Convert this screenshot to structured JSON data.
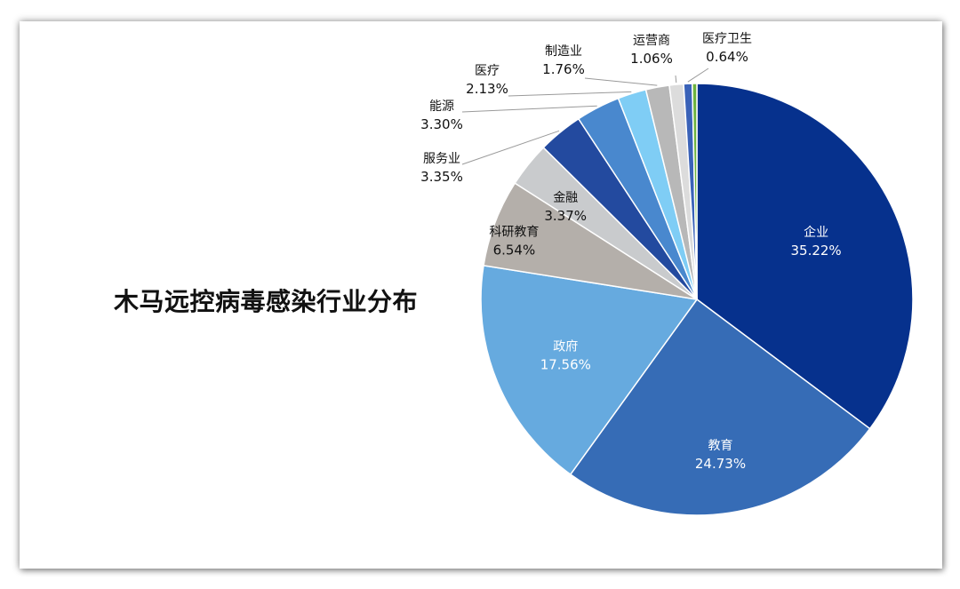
{
  "chart_data": {
    "type": "pie",
    "title": "木马远控病毒感染行业分布",
    "slices": [
      {
        "label": "企业",
        "value": 35.22,
        "display": "35.22%",
        "color": "#06318d"
      },
      {
        "label": "教育",
        "value": 24.73,
        "display": "24.73%",
        "color": "#366cb6"
      },
      {
        "label": "政府",
        "value": 17.56,
        "display": "17.56%",
        "color": "#66aadf"
      },
      {
        "label": "科研教育",
        "value": 6.54,
        "display": "6.54%",
        "color": "#b4afaa"
      },
      {
        "label": "金融",
        "value": 3.37,
        "display": "3.37%",
        "color": "#c9cbcd"
      },
      {
        "label": "服务业",
        "value": 3.35,
        "display": "3.35%",
        "color": "#234a9f"
      },
      {
        "label": "能源",
        "value": 3.3,
        "display": "3.30%",
        "color": "#4988ce"
      },
      {
        "label": "医疗",
        "value": 2.13,
        "display": "2.13%",
        "color": "#7fcdf5"
      },
      {
        "label": "制造业",
        "value": 1.76,
        "display": "1.76%",
        "color": "#b8b8b8"
      },
      {
        "label": "运营商",
        "value": 1.06,
        "display": "1.06%",
        "color": "#dcdcdc"
      },
      {
        "label": "医疗卫生",
        "value": 0.64,
        "display": "0.64%",
        "color": "#3a62b8"
      }
    ],
    "unlabeled_remainder": {
      "value": 0.34,
      "color": "#6db33f"
    }
  }
}
